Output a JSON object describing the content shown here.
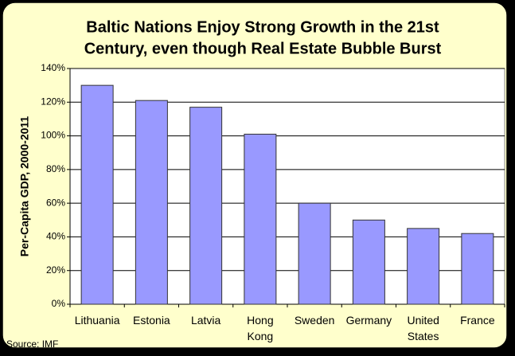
{
  "chart_data": {
    "type": "bar",
    "title": [
      "Baltic Nations Enjoy Strong Growth in the 21st",
      "Century, even though Real Estate Bubble Burst"
    ],
    "y_label": "Per-Capita GDP, 2000-2011",
    "source": "Source: IMF",
    "categories": [
      "Lithuania",
      "Estonia",
      "Latvia",
      "Hong Kong",
      "Sweden",
      "Germany",
      "United States",
      "France"
    ],
    "values": [
      130,
      121,
      117,
      101,
      60,
      50,
      45,
      42
    ],
    "color": "#9999ff",
    "ylim": [
      0,
      140
    ],
    "yticks": [
      {
        "value": 0,
        "label": "0%"
      },
      {
        "value": 20,
        "label": "20%"
      },
      {
        "value": 40,
        "label": "40%"
      },
      {
        "value": 60,
        "label": "60%"
      },
      {
        "value": 80,
        "label": "80%"
      },
      {
        "value": 100,
        "label": "100%"
      },
      {
        "value": 120,
        "label": "120%"
      },
      {
        "value": 140,
        "label": "140%"
      }
    ],
    "grid": true
  }
}
